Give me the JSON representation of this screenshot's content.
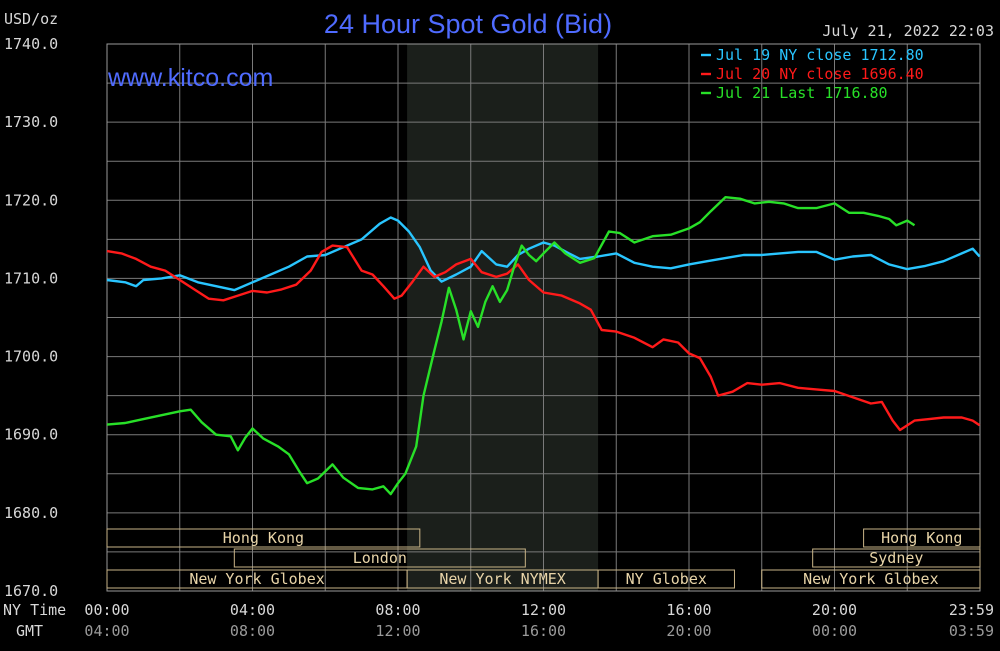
{
  "header": {
    "title": "24 Hour Spot Gold (Bid)",
    "unit": "USD/oz",
    "timestamp": "July 21, 2022 22:03",
    "website": "www.kitco.com"
  },
  "colors": {
    "background": "#000000",
    "grid": "#7a7a7a",
    "title": "#4f6bff",
    "website": "#4f6bff",
    "label": "#d8d8d8",
    "session_fill": "#1b1f1b",
    "session_border": "#c9b487",
    "session_text": "#e8d4a8"
  },
  "legend": [
    {
      "text": "Jul 19 NY close 1712.80",
      "color": "#29c5ff"
    },
    {
      "text": "Jul 20 NY close 1696.40",
      "color": "#ff1a1a"
    },
    {
      "text": "Jul 21 Last 1716.80",
      "color": "#28e028"
    }
  ],
  "time_axis": {
    "ny_label": "NY Time",
    "gmt_label": "GMT",
    "ny_ticks": [
      "00:00",
      "04:00",
      "08:00",
      "12:00",
      "16:00",
      "20:00",
      "23:59"
    ],
    "gmt_ticks": [
      "04:00",
      "08:00",
      "12:00",
      "16:00",
      "20:00",
      "00:00",
      "03:59"
    ]
  },
  "sessions": [
    {
      "label": "Hong Kong",
      "row": 0,
      "start": 0.0,
      "end": 8.6
    },
    {
      "label": "Hong Kong",
      "row": 0,
      "start": 20.8,
      "end": 24.0
    },
    {
      "label": "London",
      "row": 1,
      "start": 3.5,
      "end": 11.5
    },
    {
      "label": "Sydney",
      "row": 1,
      "start": 19.4,
      "end": 24.0
    },
    {
      "label": "New York Globex",
      "row": 2,
      "start": 0.0,
      "end": 8.25
    },
    {
      "label": "New York NYMEX",
      "row": 2,
      "start": 8.25,
      "end": 13.5
    },
    {
      "label": "NY Globex",
      "row": 2,
      "start": 13.5,
      "end": 17.25
    },
    {
      "label": "New York Globex",
      "row": 2,
      "start": 18.0,
      "end": 24.0
    }
  ],
  "chart_data": {
    "type": "line",
    "title": "24 Hour Spot Gold (Bid)",
    "ylabel": "USD/oz",
    "xlabel": "NY Time",
    "xlim": [
      0,
      24
    ],
    "ylim": [
      1670,
      1740
    ],
    "yticks": [
      1670,
      1680,
      1690,
      1700,
      1710,
      1720,
      1730,
      1740
    ],
    "ytick_labels": [
      "1670.0",
      "1680.0",
      "1690.0",
      "1700.0",
      "1710.0",
      "1720.0",
      "1730.0",
      "1740.0"
    ],
    "xticks": [
      0,
      4,
      8,
      12,
      16,
      20,
      24
    ],
    "grid": true,
    "legend_position": "top-right",
    "shaded_region": [
      8.25,
      13.5
    ],
    "series": [
      {
        "name": "Jul 19 NY close 1712.80",
        "color": "#29c5ff",
        "points": [
          [
            0,
            1709.8
          ],
          [
            0.5,
            1709.5
          ],
          [
            0.8,
            1709
          ],
          [
            1.0,
            1709.8
          ],
          [
            1.5,
            1710
          ],
          [
            2.0,
            1710.4
          ],
          [
            2.5,
            1709.5
          ],
          [
            3.0,
            1709
          ],
          [
            3.5,
            1708.5
          ],
          [
            4.0,
            1709.5
          ],
          [
            4.5,
            1710.5
          ],
          [
            5.0,
            1711.5
          ],
          [
            5.5,
            1712.8
          ],
          [
            6.0,
            1713
          ],
          [
            6.5,
            1714
          ],
          [
            7.0,
            1715
          ],
          [
            7.5,
            1717
          ],
          [
            7.8,
            1717.8
          ],
          [
            8.0,
            1717.4
          ],
          [
            8.3,
            1716
          ],
          [
            8.6,
            1714
          ],
          [
            8.9,
            1711
          ],
          [
            9.2,
            1709.6
          ],
          [
            9.6,
            1710.5
          ],
          [
            10.0,
            1711.5
          ],
          [
            10.3,
            1713.5
          ],
          [
            10.7,
            1711.8
          ],
          [
            11.0,
            1711.5
          ],
          [
            11.3,
            1713
          ],
          [
            11.6,
            1713.8
          ],
          [
            12.0,
            1714.6
          ],
          [
            12.3,
            1714.2
          ],
          [
            12.7,
            1713.2
          ],
          [
            13.0,
            1712.5
          ],
          [
            13.5,
            1712.8
          ],
          [
            14.0,
            1713.2
          ],
          [
            14.5,
            1712
          ],
          [
            15.0,
            1711.5
          ],
          [
            15.5,
            1711.3
          ],
          [
            16.0,
            1711.8
          ],
          [
            16.5,
            1712.2
          ],
          [
            17.0,
            1712.6
          ],
          [
            17.5,
            1713
          ],
          [
            18.0,
            1713
          ],
          [
            18.5,
            1713.2
          ],
          [
            19.0,
            1713.4
          ],
          [
            19.5,
            1713.4
          ],
          [
            20.0,
            1712.4
          ],
          [
            20.5,
            1712.8
          ],
          [
            21.0,
            1713
          ],
          [
            21.5,
            1711.8
          ],
          [
            22.0,
            1711.2
          ],
          [
            22.5,
            1711.6
          ],
          [
            23.0,
            1712.2
          ],
          [
            23.5,
            1713.2
          ],
          [
            23.8,
            1713.8
          ],
          [
            23.99,
            1712.8
          ]
        ]
      },
      {
        "name": "Jul 20 NY close 1696.40",
        "color": "#ff1a1a",
        "points": [
          [
            0,
            1713.5
          ],
          [
            0.4,
            1713.2
          ],
          [
            0.8,
            1712.5
          ],
          [
            1.2,
            1711.5
          ],
          [
            1.6,
            1711
          ],
          [
            2.0,
            1709.8
          ],
          [
            2.4,
            1708.6
          ],
          [
            2.8,
            1707.4
          ],
          [
            3.2,
            1707.2
          ],
          [
            3.6,
            1707.8
          ],
          [
            4.0,
            1708.4
          ],
          [
            4.4,
            1708.2
          ],
          [
            4.8,
            1708.6
          ],
          [
            5.2,
            1709.2
          ],
          [
            5.6,
            1711
          ],
          [
            5.9,
            1713.4
          ],
          [
            6.2,
            1714.2
          ],
          [
            6.6,
            1714
          ],
          [
            7.0,
            1711
          ],
          [
            7.3,
            1710.5
          ],
          [
            7.6,
            1709
          ],
          [
            7.9,
            1707.4
          ],
          [
            8.1,
            1707.8
          ],
          [
            8.4,
            1709.6
          ],
          [
            8.7,
            1711.5
          ],
          [
            9.0,
            1710.2
          ],
          [
            9.3,
            1710.8
          ],
          [
            9.6,
            1711.8
          ],
          [
            10.0,
            1712.5
          ],
          [
            10.3,
            1710.8
          ],
          [
            10.7,
            1710.2
          ],
          [
            11.0,
            1710.6
          ],
          [
            11.3,
            1711.8
          ],
          [
            11.6,
            1709.8
          ],
          [
            12.0,
            1708.2
          ],
          [
            12.5,
            1707.8
          ],
          [
            13.0,
            1706.8
          ],
          [
            13.3,
            1706
          ],
          [
            13.6,
            1703.4
          ],
          [
            14.0,
            1703.2
          ],
          [
            14.5,
            1702.4
          ],
          [
            15.0,
            1701.2
          ],
          [
            15.3,
            1702.2
          ],
          [
            15.7,
            1701.8
          ],
          [
            16.0,
            1700.4
          ],
          [
            16.3,
            1699.8
          ],
          [
            16.6,
            1697.4
          ],
          [
            16.8,
            1695
          ],
          [
            17.2,
            1695.5
          ],
          [
            17.6,
            1696.6
          ],
          [
            18.0,
            1696.4
          ],
          [
            18.5,
            1696.6
          ],
          [
            19.0,
            1696
          ],
          [
            19.5,
            1695.8
          ],
          [
            20.0,
            1695.6
          ],
          [
            20.5,
            1694.8
          ],
          [
            21.0,
            1694
          ],
          [
            21.3,
            1694.2
          ],
          [
            21.6,
            1691.8
          ],
          [
            21.8,
            1690.6
          ],
          [
            22.2,
            1691.8
          ],
          [
            22.6,
            1692
          ],
          [
            23.0,
            1692.2
          ],
          [
            23.5,
            1692.2
          ],
          [
            23.8,
            1691.8
          ],
          [
            23.99,
            1691.2
          ]
        ]
      },
      {
        "name": "Jul 21 Last 1716.80",
        "color": "#28e028",
        "points": [
          [
            0,
            1691.3
          ],
          [
            0.5,
            1691.5
          ],
          [
            1.0,
            1692
          ],
          [
            1.5,
            1692.5
          ],
          [
            2.0,
            1693
          ],
          [
            2.3,
            1693.2
          ],
          [
            2.6,
            1691.6
          ],
          [
            3.0,
            1690
          ],
          [
            3.4,
            1689.8
          ],
          [
            3.6,
            1688
          ],
          [
            3.8,
            1689.6
          ],
          [
            4.0,
            1690.8
          ],
          [
            4.3,
            1689.5
          ],
          [
            4.7,
            1688.5
          ],
          [
            5.0,
            1687.5
          ],
          [
            5.3,
            1685.2
          ],
          [
            5.5,
            1683.8
          ],
          [
            5.8,
            1684.4
          ],
          [
            6.2,
            1686.2
          ],
          [
            6.5,
            1684.5
          ],
          [
            6.9,
            1683.2
          ],
          [
            7.3,
            1683
          ],
          [
            7.6,
            1683.4
          ],
          [
            7.8,
            1682.4
          ],
          [
            8.0,
            1683.8
          ],
          [
            8.2,
            1685
          ],
          [
            8.5,
            1688.5
          ],
          [
            8.7,
            1695
          ],
          [
            9.0,
            1700.8
          ],
          [
            9.2,
            1704.5
          ],
          [
            9.4,
            1708.8
          ],
          [
            9.6,
            1706
          ],
          [
            9.8,
            1702.2
          ],
          [
            10.0,
            1705.8
          ],
          [
            10.2,
            1703.8
          ],
          [
            10.4,
            1707
          ],
          [
            10.6,
            1709
          ],
          [
            10.8,
            1707
          ],
          [
            11.0,
            1708.5
          ],
          [
            11.2,
            1711.6
          ],
          [
            11.4,
            1714.2
          ],
          [
            11.6,
            1713
          ],
          [
            11.8,
            1712.2
          ],
          [
            12.0,
            1713.2
          ],
          [
            12.3,
            1714.6
          ],
          [
            12.6,
            1713.2
          ],
          [
            13.0,
            1712
          ],
          [
            13.4,
            1712.6
          ],
          [
            13.8,
            1716
          ],
          [
            14.1,
            1715.8
          ],
          [
            14.5,
            1714.6
          ],
          [
            15.0,
            1715.4
          ],
          [
            15.5,
            1715.6
          ],
          [
            16.0,
            1716.4
          ],
          [
            16.3,
            1717.2
          ],
          [
            16.6,
            1718.6
          ],
          [
            17.0,
            1720.4
          ],
          [
            17.4,
            1720.2
          ],
          [
            17.8,
            1719.6
          ],
          [
            18.2,
            1719.8
          ],
          [
            18.6,
            1719.6
          ],
          [
            19.0,
            1719
          ],
          [
            19.5,
            1719
          ],
          [
            20.0,
            1719.6
          ],
          [
            20.4,
            1718.4
          ],
          [
            20.8,
            1718.4
          ],
          [
            21.2,
            1718
          ],
          [
            21.5,
            1717.6
          ],
          [
            21.7,
            1716.8
          ],
          [
            22.0,
            1717.4
          ],
          [
            22.2,
            1716.8
          ]
        ]
      }
    ]
  }
}
